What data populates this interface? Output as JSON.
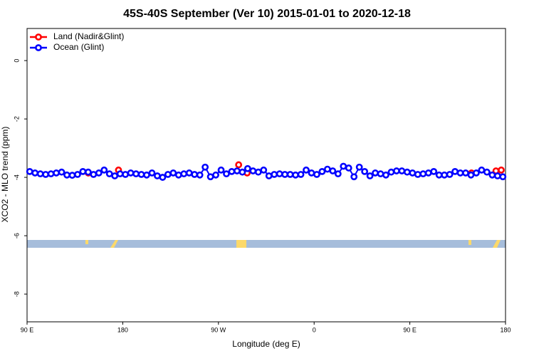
{
  "chart_data": {
    "type": "line",
    "title": "45S-40S September (Ver 10)   2015-01-01 to 2020-12-18",
    "xlabel": "Longitude (deg E)",
    "ylabel": "XCO2 - MLO trend (ppm)",
    "xlim": [
      90,
      540
    ],
    "ylim": [
      -8.95,
      1.1
    ],
    "xticks": [
      {
        "value": 90,
        "label": "90 E"
      },
      180,
      {
        "value": 270,
        "label": "90 W"
      },
      {
        "value": 360,
        "label": "0"
      },
      {
        "value": 450,
        "label": "90 E"
      },
      {
        "value": 540,
        "label": "180"
      }
    ],
    "yticks": [
      0,
      -2,
      -4,
      -6,
      -8
    ],
    "legend": "top-left",
    "series": [
      {
        "name": "Land (Nadir&Glint)",
        "color": "#ff0000",
        "x": [
          147.6,
          176,
          289,
          297,
          508,
          531,
          536
        ],
        "values": [
          -3.85,
          -3.75,
          -3.57,
          -3.85,
          -3.85,
          -3.78,
          -3.75
        ]
      },
      {
        "name": "Ocean (Glint)",
        "color": "#0000ff",
        "x": [
          92.5,
          97.5,
          102.5,
          107.5,
          112.5,
          117.5,
          122.5,
          127.5,
          132.5,
          137.5,
          142.5,
          147.5,
          152.5,
          157.5,
          162.5,
          167.5,
          172.5,
          177.5,
          182.5,
          187.5,
          192.5,
          197.5,
          202.5,
          207.5,
          212.5,
          217.5,
          222.5,
          227.5,
          232.5,
          237.5,
          242.5,
          247.5,
          252.5,
          257.5,
          262.5,
          267.5,
          272.5,
          277.5,
          282.5,
          287.5,
          292.5,
          297.5,
          302.5,
          307.5,
          312.5,
          317.5,
          322.5,
          327.5,
          332.5,
          337.5,
          342.5,
          347.5,
          352.5,
          357.5,
          362.5,
          367.5,
          372.5,
          377.5,
          382.5,
          387.5,
          392.5,
          397.5,
          402.5,
          407.5,
          412.5,
          417.5,
          422.5,
          427.5,
          432.5,
          437.5,
          442.5,
          447.5,
          452.5,
          457.5,
          462.5,
          467.5,
          472.5,
          477.5,
          482.5,
          487.5,
          492.5,
          497.5,
          502.5,
          507.5,
          512.5,
          517.5,
          522.5,
          527.5,
          532.5,
          537.5
        ],
        "values": [
          -3.8,
          -3.85,
          -3.88,
          -3.9,
          -3.88,
          -3.85,
          -3.82,
          -3.92,
          -3.93,
          -3.9,
          -3.8,
          -3.82,
          -3.9,
          -3.85,
          -3.75,
          -3.88,
          -3.95,
          -3.88,
          -3.9,
          -3.85,
          -3.88,
          -3.9,
          -3.92,
          -3.85,
          -3.95,
          -4.0,
          -3.9,
          -3.85,
          -3.92,
          -3.88,
          -3.85,
          -3.9,
          -3.92,
          -3.65,
          -3.98,
          -3.92,
          -3.75,
          -3.88,
          -3.8,
          -3.78,
          -3.82,
          -3.7,
          -3.78,
          -3.82,
          -3.75,
          -3.95,
          -3.9,
          -3.88,
          -3.9,
          -3.9,
          -3.92,
          -3.9,
          -3.75,
          -3.85,
          -3.9,
          -3.8,
          -3.72,
          -3.78,
          -3.88,
          -3.62,
          -3.68,
          -3.98,
          -3.65,
          -3.8,
          -3.95,
          -3.85,
          -3.88,
          -3.92,
          -3.82,
          -3.78,
          -3.78,
          -3.82,
          -3.85,
          -3.9,
          -3.88,
          -3.85,
          -3.8,
          -3.92,
          -3.92,
          -3.9,
          -3.8,
          -3.85,
          -3.85,
          -3.92,
          -3.85,
          -3.75,
          -3.82,
          -3.92,
          -3.95,
          -3.98
        ]
      }
    ]
  }
}
